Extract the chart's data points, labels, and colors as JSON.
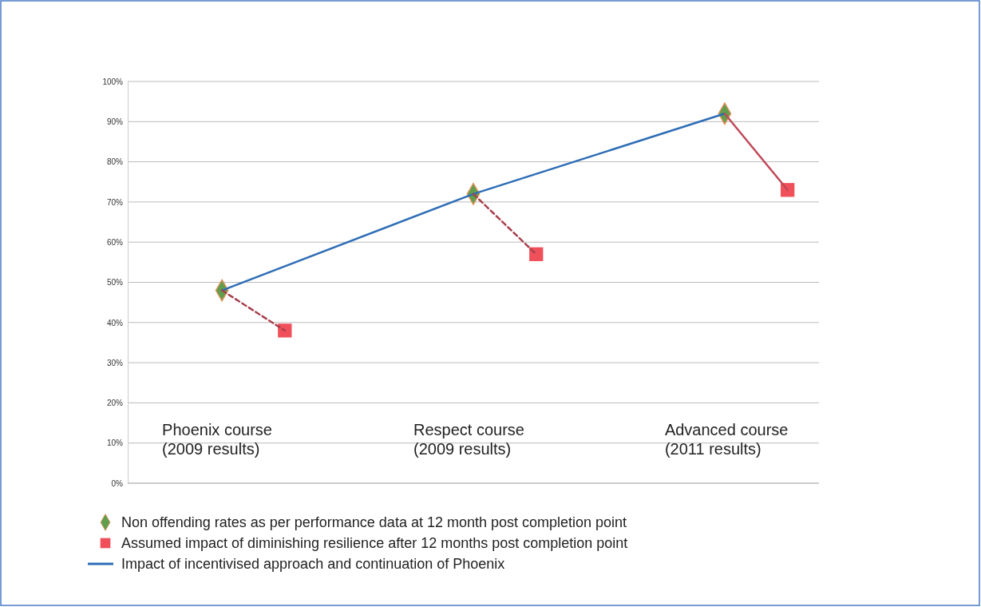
{
  "chart_data": {
    "type": "scatter",
    "categories": [
      null,
      null,
      null,
      null,
      null,
      null,
      null,
      null,
      null,
      null,
      null
    ],
    "ylim": [
      0,
      100
    ],
    "yticks": [
      {
        "value": 0,
        "label": "0%"
      },
      {
        "value": 10,
        "label": "10%"
      },
      {
        "value": 20,
        "label": "20%"
      },
      {
        "value": 30,
        "label": "30%"
      },
      {
        "value": 40,
        "label": "40%"
      },
      {
        "value": 50,
        "label": "50%"
      },
      {
        "value": 60,
        "label": "60%"
      },
      {
        "value": 70,
        "label": "70%"
      },
      {
        "value": 80,
        "label": "80%"
      },
      {
        "value": 90,
        "label": "90%"
      },
      {
        "value": 100,
        "label": "100%"
      }
    ],
    "tick_labels": "y",
    "grid": "y",
    "legend": "bottom",
    "annotations": [
      "Phoenix course\n(2009 results)",
      "Respect course\n(2009 results)",
      "Advanced course\n(2011 results)"
    ],
    "series": [
      {
        "name": "Non offending rates as per performance data at 12 month post completion point",
        "marker": "diamond",
        "color": "#5e9e4c",
        "values": [
          null,
          48,
          null,
          null,
          null,
          72,
          null,
          null,
          null,
          92,
          null
        ]
      },
      {
        "name": "Assumed impact of diminishing resilience after 12 months post completion point",
        "marker": "square",
        "color": "#f0505a",
        "values": [
          null,
          null,
          38,
          null,
          null,
          null,
          57,
          null,
          null,
          null,
          73
        ]
      },
      {
        "name": "Impact of incentivised approach and continuation of Phoenix",
        "type": "line",
        "marker": "none",
        "line_style": "solid",
        "color": "#2e6db5",
        "values": [
          null,
          48,
          null,
          null,
          null,
          72,
          null,
          null,
          null,
          92,
          null
        ]
      },
      {
        "type": "line",
        "marker": "none",
        "line_style": "dashed",
        "color": "#a8404f",
        "values": [
          null,
          48,
          38,
          null,
          null,
          null,
          null,
          null,
          null,
          null,
          null
        ]
      },
      {
        "type": "line",
        "marker": "none",
        "line_style": "dashed",
        "color": "#a8404f",
        "values": [
          null,
          null,
          null,
          null,
          null,
          72,
          57,
          null,
          null,
          null,
          null
        ]
      },
      {
        "type": "line",
        "marker": "none",
        "line_style": "solid",
        "color": "#c04858",
        "values": [
          null,
          null,
          null,
          null,
          null,
          null,
          null,
          null,
          null,
          92,
          73
        ]
      }
    ]
  }
}
